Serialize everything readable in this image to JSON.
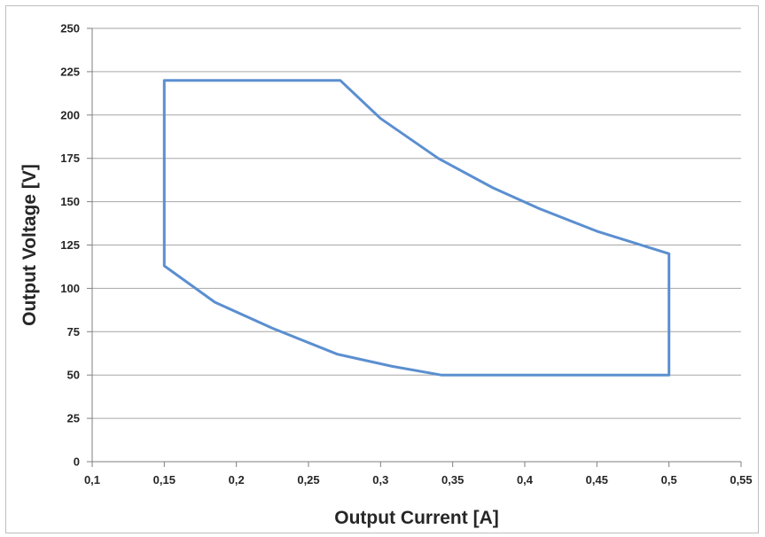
{
  "chart_data": {
    "type": "line",
    "title": "",
    "xlabel": "Output Current [A]",
    "ylabel": "Output Voltage [V]",
    "xlim": [
      0.1,
      0.55
    ],
    "ylim": [
      0,
      250
    ],
    "x_ticks": [
      "0,1",
      "0,15",
      "0,2",
      "0,25",
      "0,3",
      "0,35",
      "0,4",
      "0,45",
      "0,5",
      "0,55"
    ],
    "x_tick_values": [
      0.1,
      0.15,
      0.2,
      0.25,
      0.3,
      0.35,
      0.4,
      0.45,
      0.5,
      0.55
    ],
    "y_ticks": [
      "0",
      "25",
      "50",
      "75",
      "100",
      "125",
      "150",
      "175",
      "200",
      "225",
      "250"
    ],
    "y_tick_values": [
      0,
      25,
      50,
      75,
      100,
      125,
      150,
      175,
      200,
      225,
      250
    ],
    "grid": true,
    "series_color": "#5b8fd0",
    "series": [
      {
        "points": [
          [
            0.15,
            220
          ],
          [
            0.272,
            220
          ],
          [
            0.3,
            198
          ],
          [
            0.34,
            175
          ],
          [
            0.378,
            158
          ],
          [
            0.41,
            146
          ],
          [
            0.45,
            133
          ],
          [
            0.5,
            120
          ],
          [
            0.5,
            50
          ],
          [
            0.342,
            50
          ],
          [
            0.308,
            55
          ],
          [
            0.27,
            62
          ],
          [
            0.225,
            77
          ],
          [
            0.185,
            92
          ],
          [
            0.15,
            113
          ],
          [
            0.15,
            220
          ]
        ]
      }
    ]
  }
}
